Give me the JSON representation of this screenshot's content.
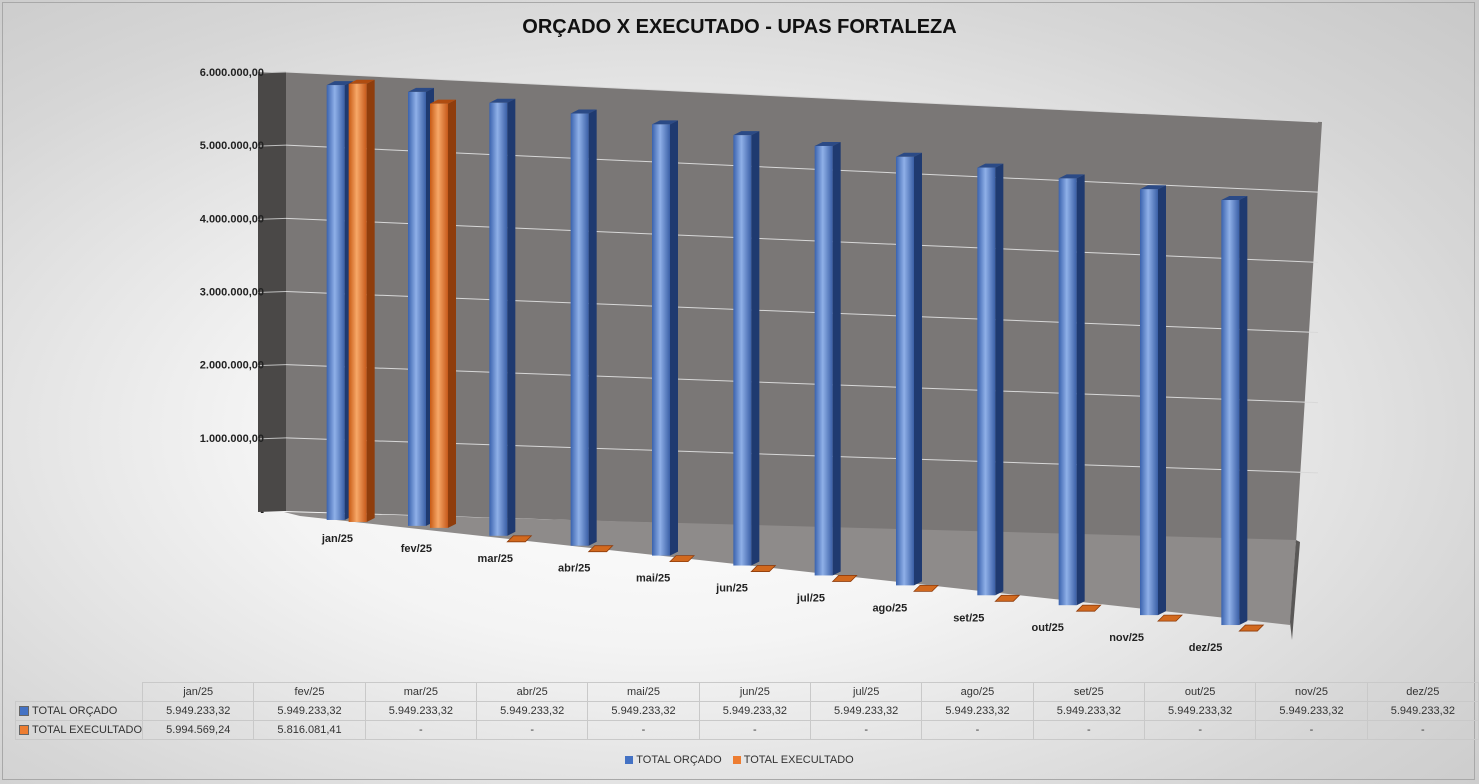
{
  "chart_data": {
    "type": "bar",
    "title": "ORÇADO X EXECUTADO - UPAS FORTALEZA",
    "categories": [
      "jan/25",
      "fev/25",
      "mar/25",
      "abr/25",
      "mai/25",
      "jun/25",
      "jul/25",
      "ago/25",
      "set/25",
      "out/25",
      "nov/25",
      "dez/25"
    ],
    "series": [
      {
        "name": "TOTAL ORÇADO",
        "color": "#4472c4",
        "values": [
          5949233.32,
          5949233.32,
          5949233.32,
          5949233.32,
          5949233.32,
          5949233.32,
          5949233.32,
          5949233.32,
          5949233.32,
          5949233.32,
          5949233.32,
          5949233.32
        ]
      },
      {
        "name": "TOTAL EXECULTADO",
        "color": "#ed7d31",
        "values": [
          5994569.24,
          5816081.41,
          0,
          0,
          0,
          0,
          0,
          0,
          0,
          0,
          0,
          0
        ]
      }
    ],
    "ylim": [
      0,
      6000000
    ],
    "yticks": [
      "-",
      "1.000.000,00",
      "2.000.000,00",
      "3.000.000,00",
      "4.000.000,00",
      "5.000.000,00",
      "6.000.000,00"
    ],
    "grid": true,
    "legend_position": "bottom"
  },
  "data_table": {
    "headers": [
      "jan/25",
      "fev/25",
      "mar/25",
      "abr/25",
      "mai/25",
      "jun/25",
      "jul/25",
      "ago/25",
      "set/25",
      "out/25",
      "nov/25",
      "dez/25"
    ],
    "rows": [
      {
        "label": "TOTAL ORÇADO",
        "color": "#4472c4",
        "cells": [
          "5.949.233,32",
          "5.949.233,32",
          "5.949.233,32",
          "5.949.233,32",
          "5.949.233,32",
          "5.949.233,32",
          "5.949.233,32",
          "5.949.233,32",
          "5.949.233,32",
          "5.949.233,32",
          "5.949.233,32",
          "5.949.233,32"
        ]
      },
      {
        "label": "TOTAL EXECULTADO",
        "color": "#ed7d31",
        "cells": [
          "5.994.569,24",
          "5.816.081,41",
          "-",
          "-",
          "-",
          "-",
          "-",
          "-",
          "-",
          "-",
          "-",
          "-"
        ]
      }
    ]
  },
  "legend": [
    {
      "label": "TOTAL ORÇADO",
      "color": "#4472c4"
    },
    {
      "label": "TOTAL EXECULTADO",
      "color": "#ed7d31"
    }
  ]
}
